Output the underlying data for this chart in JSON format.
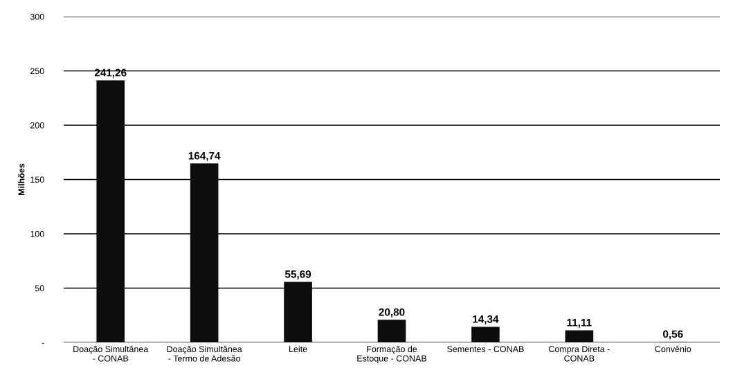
{
  "chart_data": {
    "type": "bar",
    "ylabel": "Milhões",
    "categories": [
      "Doação Simultânea - CONAB",
      "Doação Simultânea - Termo de Adesão",
      "Leite",
      "Formação de Estoque - CONAB",
      "Sementes - CONAB",
      "Compra Direta - CONAB",
      "Convênio"
    ],
    "values": [
      241.26,
      164.74,
      55.69,
      20.8,
      14.34,
      11.11,
      0.56
    ],
    "value_labels": [
      "241,26",
      "164,74",
      "55,69",
      "20,80",
      "14,34",
      "11,11",
      "0,56"
    ],
    "color": "#0d0d0d",
    "ylim": [
      0,
      300
    ],
    "yticks": [
      {
        "value": 0,
        "label": "-"
      },
      50,
      100,
      150,
      200,
      250,
      300
    ],
    "grid": "y",
    "legend": false
  }
}
